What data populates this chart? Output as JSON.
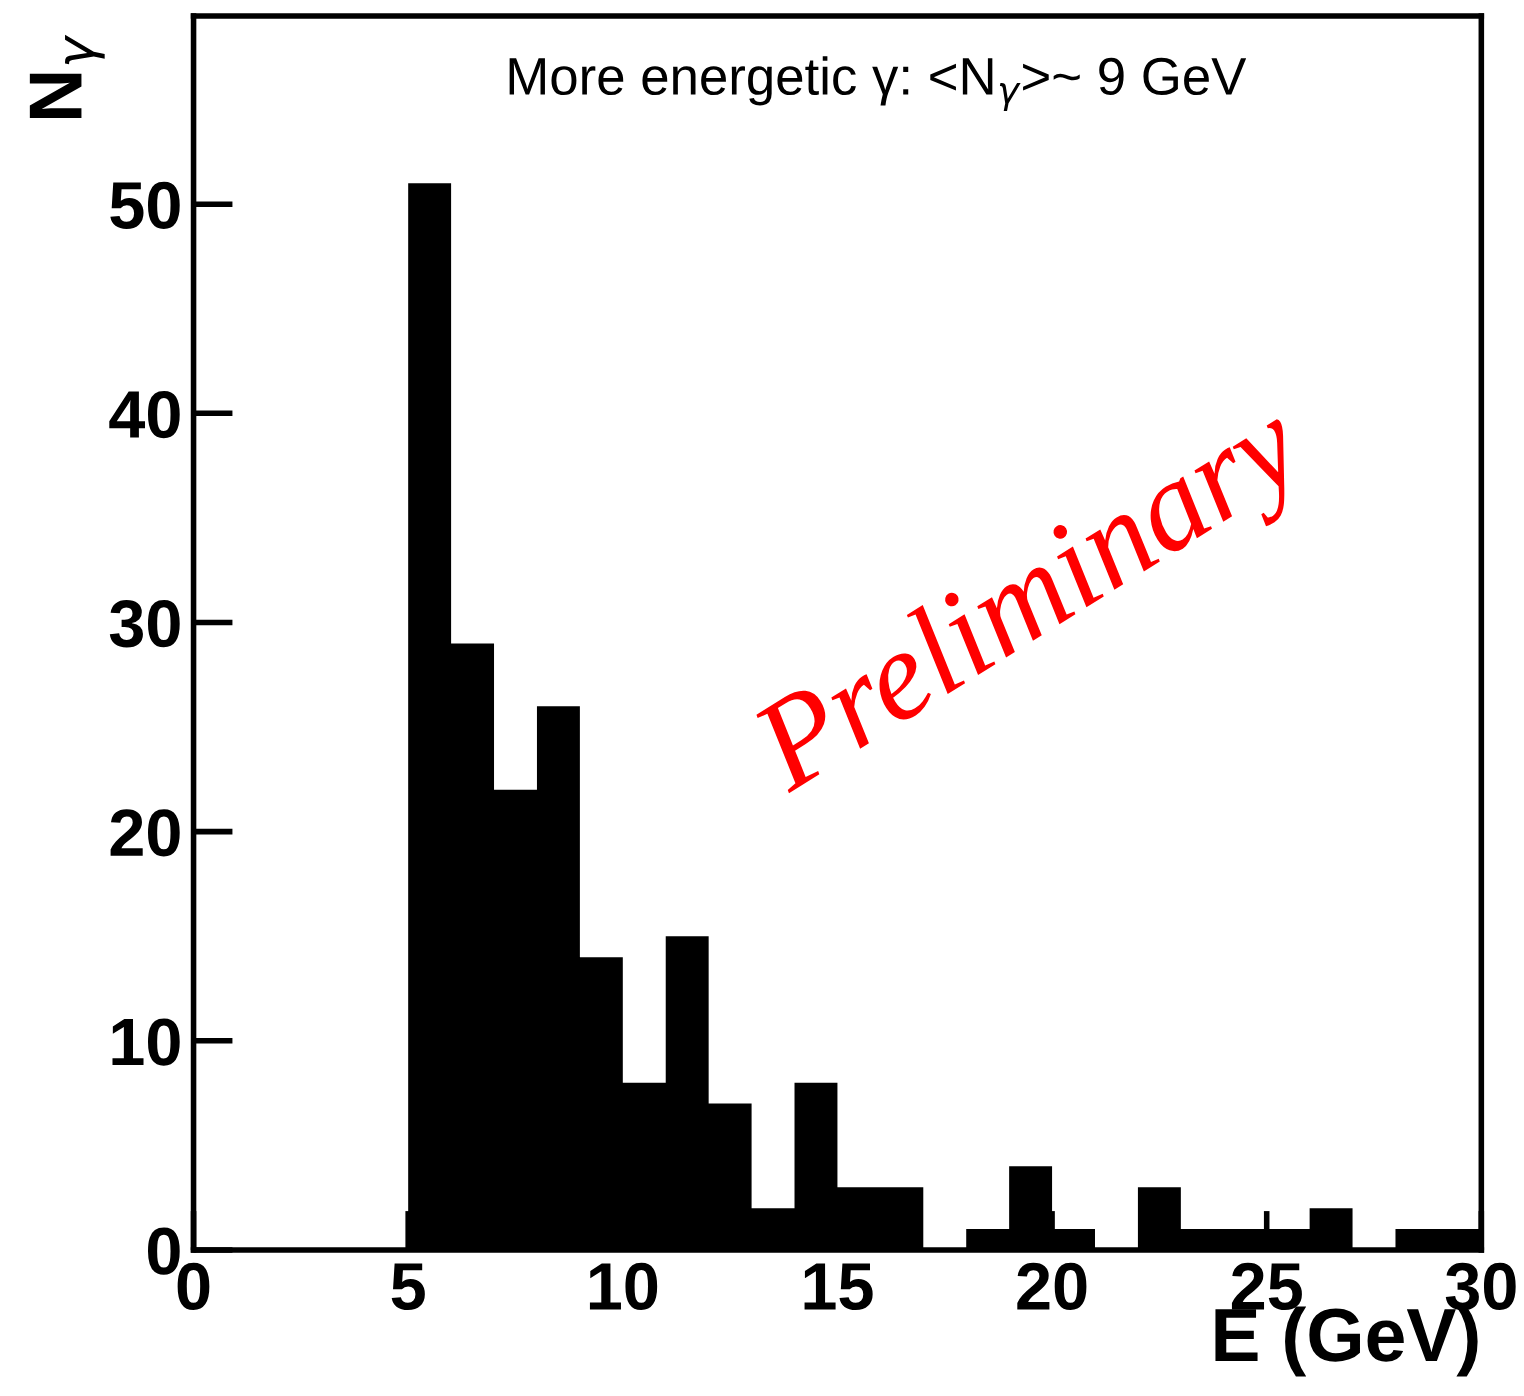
{
  "chart_data": {
    "type": "histogram",
    "title": "More energetic γ: <N$_{γ}$>~ 9 GeV",
    "xlabel": "E (GeV)",
    "ylabel": "N$_{γ}$",
    "bins": [
      0,
      1,
      2,
      3,
      4,
      5,
      6,
      7,
      8,
      9,
      10,
      11,
      12,
      13,
      14,
      15,
      16,
      17,
      18,
      19,
      20,
      21,
      22,
      23,
      24,
      25,
      26,
      27,
      28,
      29,
      30
    ],
    "values": [
      0,
      0,
      0,
      0,
      0,
      51,
      29,
      22,
      26,
      14,
      8,
      15,
      7,
      2,
      8,
      3,
      3,
      0,
      1,
      4,
      1,
      0,
      3,
      1,
      1,
      1,
      2,
      0,
      1,
      1
    ],
    "color": "#000000",
    "xlim": [
      0,
      30
    ],
    "xticks": [
      0,
      5,
      10,
      15,
      20,
      25,
      30
    ],
    "ylim": [
      0,
      59
    ],
    "yticks": [
      0,
      10,
      20,
      30,
      40,
      50
    ],
    "annotations": [
      "Preliminary"
    ],
    "grid": false,
    "legend": false
  }
}
